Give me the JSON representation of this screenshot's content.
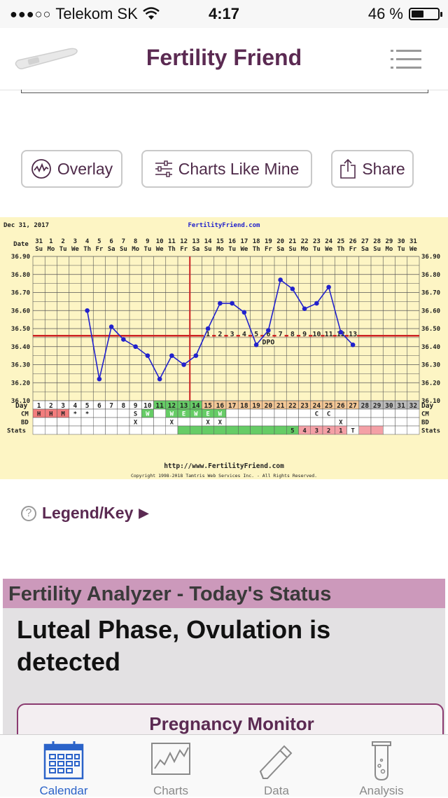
{
  "status_bar": {
    "signal": "●●●○○",
    "carrier": "Telekom SK",
    "time": "4:17",
    "battery_percent_label": "46 %",
    "battery_level": 0.46
  },
  "header": {
    "title": "Fertility Friend"
  },
  "actions": [
    {
      "label": "Overlay",
      "icon": "overlay-icon"
    },
    {
      "label": "Charts Like Mine",
      "icon": "sliders-icon"
    },
    {
      "label": "Share",
      "icon": "share-icon"
    }
  ],
  "chart_data": {
    "type": "line",
    "date_label": "Dec 31, 2017",
    "site_label": "FertilityFriend.com",
    "date_row_label": "Date",
    "day_row_label": "Day",
    "dates": [
      "31",
      "1",
      "2",
      "3",
      "4",
      "5",
      "6",
      "7",
      "8",
      "9",
      "10",
      "11",
      "12",
      "13",
      "14",
      "15",
      "16",
      "17",
      "18",
      "19",
      "20",
      "21",
      "22",
      "23",
      "24",
      "25",
      "26",
      "27",
      "28",
      "29",
      "30",
      "31"
    ],
    "weekdays": [
      "Su",
      "Mo",
      "Tu",
      "We",
      "Th",
      "Fr",
      "Sa",
      "Su",
      "Mo",
      "Tu",
      "We",
      "Th",
      "Fr",
      "Sa",
      "Su",
      "Mo",
      "Tu",
      "We",
      "Th",
      "Fr",
      "Sa",
      "Su",
      "Mo",
      "Tu",
      "We",
      "Th",
      "Fr",
      "Sa",
      "Su",
      "Mo",
      "Tu",
      "We"
    ],
    "days": [
      1,
      2,
      3,
      4,
      5,
      6,
      7,
      8,
      9,
      10,
      11,
      12,
      13,
      14,
      15,
      16,
      17,
      18,
      19,
      20,
      21,
      22,
      23,
      24,
      25,
      26,
      27,
      28,
      29,
      30,
      31,
      32
    ],
    "y_ticks": [
      "36.90",
      "36.80",
      "36.70",
      "36.60",
      "36.50",
      "36.40",
      "36.30",
      "36.20",
      "36.10"
    ],
    "ylim": [
      36.1,
      36.9
    ],
    "temps": [
      null,
      null,
      null,
      null,
      36.6,
      36.22,
      36.51,
      36.44,
      36.4,
      36.35,
      36.22,
      36.35,
      36.3,
      36.35,
      36.5,
      36.64,
      36.64,
      36.59,
      36.41,
      36.49,
      36.77,
      36.72,
      36.61,
      36.64,
      36.73,
      36.48,
      36.41,
      null,
      null,
      null,
      null,
      null
    ],
    "coverline": 36.46,
    "ovulation_day": 14,
    "dpo_numbers": [
      "1",
      "2",
      "3",
      "4",
      "5",
      "6",
      "7",
      "8",
      "9",
      "10",
      "11",
      "12",
      "13"
    ],
    "dpo_label": "DPO",
    "row_labels": {
      "cm": "CM",
      "bd": "BD",
      "stats": "Stats"
    },
    "cm": [
      "H",
      "H",
      "M",
      "*",
      "*",
      "",
      "",
      "",
      "S",
      "W",
      "",
      "W",
      "E",
      "W",
      "E",
      "W",
      "",
      "",
      "",
      "",
      "",
      "",
      "",
      "C",
      "C",
      "",
      "",
      "",
      "",
      "",
      "",
      ""
    ],
    "bd": [
      "",
      "",
      "",
      "",
      "",
      "",
      "",
      "",
      "X",
      "",
      "",
      "X",
      "",
      "",
      "X",
      "X",
      "",
      "",
      "",
      "",
      "",
      "",
      "",
      "",
      "",
      "X",
      "",
      "",
      "",
      "",
      "",
      ""
    ],
    "stats": [
      "",
      "",
      "",
      "",
      "",
      "",
      "",
      "",
      "",
      "",
      "",
      "",
      "",
      "",
      "",
      "",
      "",
      "",
      "",
      "",
      "",
      "5",
      "4",
      "3",
      "2",
      "1",
      "T",
      "",
      "",
      "",
      "",
      ""
    ],
    "footer_url": "http://www.FertilityFriend.com",
    "copyright": "Copyright 1998-2018 Tamtris Web Services Inc. - All Rights Reserved.",
    "colors": {
      "line": "#2222cc",
      "coverline": "#cc2222",
      "grid": "#555555",
      "bg": "#fdf5c4",
      "green": "#66cc66",
      "orange": "#f5c896",
      "gray": "#bbbbbb",
      "pink": "#f4a0a6",
      "menses": "#f27d7d"
    }
  },
  "legend": {
    "label": "Legend/Key",
    "help_glyph": "?",
    "arrow": "▶"
  },
  "analyzer": {
    "header": "Fertility Analyzer - Today's Status",
    "status": "Luteal Phase, Ovulation is detected",
    "monitor_title": "Pregnancy Monitor"
  },
  "tabs": [
    {
      "label": "Calendar",
      "icon": "calendar-icon",
      "active": true
    },
    {
      "label": "Charts",
      "icon": "chart-icon",
      "active": false
    },
    {
      "label": "Data",
      "icon": "pencil-icon",
      "active": false
    },
    {
      "label": "Analysis",
      "icon": "test-tube-icon",
      "active": false
    }
  ]
}
